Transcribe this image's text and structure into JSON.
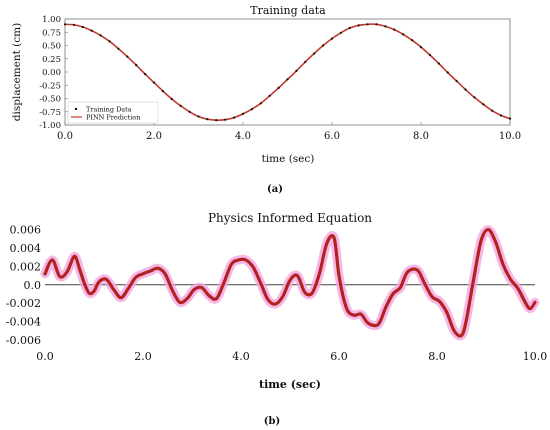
{
  "chart_data": [
    {
      "type": "line",
      "title": "Training data",
      "xlabel": "time (sec)",
      "ylabel": "displacement (cm)",
      "xlim": [
        0,
        10
      ],
      "ylim": [
        -1.0,
        1.0
      ],
      "x_ticks": [
        "0.0",
        "2.0",
        "4.0",
        "6.0",
        "8.0",
        "10.0"
      ],
      "y_ticks": [
        "1.00",
        "0.75",
        "0.50",
        "0.25",
        "0.00",
        "-0.25",
        "-0.50",
        "-0.75",
        "-1.00"
      ],
      "legend_position": "bottom-left",
      "series": [
        {
          "name": "Training Data",
          "style": "points",
          "color": "#111111",
          "x": [
            0.0,
            0.2,
            0.4,
            0.6,
            0.8,
            1.0,
            1.2,
            1.4,
            1.6,
            1.8,
            2.0,
            2.2,
            2.4,
            2.6,
            2.8,
            3.0,
            3.2,
            3.4,
            3.6,
            3.8,
            4.0,
            4.2,
            4.4,
            4.6,
            4.8,
            5.0,
            5.2,
            5.4,
            5.6,
            5.8,
            6.0,
            6.2,
            6.4,
            6.6,
            6.8,
            7.0,
            7.2,
            7.4,
            7.6,
            7.8,
            8.0,
            8.2,
            8.4,
            8.6,
            8.8,
            9.0,
            9.2,
            9.4,
            9.6,
            9.8,
            10.0
          ],
          "y": [
            0.9,
            0.89,
            0.85,
            0.78,
            0.69,
            0.58,
            0.44,
            0.29,
            0.13,
            -0.04,
            -0.2,
            -0.36,
            -0.51,
            -0.64,
            -0.75,
            -0.84,
            -0.89,
            -0.91,
            -0.9,
            -0.86,
            -0.79,
            -0.7,
            -0.59,
            -0.45,
            -0.3,
            -0.14,
            0.02,
            0.19,
            0.35,
            0.5,
            0.63,
            0.74,
            0.83,
            0.88,
            0.9,
            0.9,
            0.86,
            0.8,
            0.71,
            0.6,
            0.47,
            0.32,
            0.16,
            -0.01,
            -0.17,
            -0.33,
            -0.48,
            -0.61,
            -0.73,
            -0.82,
            -0.88
          ]
        },
        {
          "name": "PINN Prediction",
          "style": "line",
          "color": "#c0392b",
          "x": [
            0.0,
            0.2,
            0.4,
            0.6,
            0.8,
            1.0,
            1.2,
            1.4,
            1.6,
            1.8,
            2.0,
            2.2,
            2.4,
            2.6,
            2.8,
            3.0,
            3.2,
            3.4,
            3.6,
            3.8,
            4.0,
            4.2,
            4.4,
            4.6,
            4.8,
            5.0,
            5.2,
            5.4,
            5.6,
            5.8,
            6.0,
            6.2,
            6.4,
            6.6,
            6.8,
            7.0,
            7.2,
            7.4,
            7.6,
            7.8,
            8.0,
            8.2,
            8.4,
            8.6,
            8.8,
            9.0,
            9.2,
            9.4,
            9.6,
            9.8,
            10.0
          ],
          "y": [
            0.9,
            0.89,
            0.85,
            0.78,
            0.69,
            0.58,
            0.44,
            0.29,
            0.13,
            -0.04,
            -0.2,
            -0.36,
            -0.51,
            -0.64,
            -0.75,
            -0.84,
            -0.89,
            -0.91,
            -0.9,
            -0.86,
            -0.79,
            -0.7,
            -0.59,
            -0.45,
            -0.3,
            -0.14,
            0.02,
            0.19,
            0.35,
            0.5,
            0.63,
            0.74,
            0.83,
            0.88,
            0.9,
            0.9,
            0.86,
            0.8,
            0.71,
            0.6,
            0.47,
            0.32,
            0.16,
            -0.01,
            -0.17,
            -0.33,
            -0.48,
            -0.61,
            -0.73,
            -0.82,
            -0.88
          ]
        }
      ],
      "panel_label": "(a)"
    },
    {
      "type": "line",
      "title": "Physics Informed Equation",
      "xlabel": "time (sec)",
      "ylabel": "",
      "xlim": [
        0,
        10
      ],
      "ylim": [
        -0.006,
        0.0065
      ],
      "x_ticks": [
        "0.0",
        "2.0",
        "4.0",
        "6.0",
        "8.0",
        "10.0"
      ],
      "y_ticks": [
        "0.006",
        "0.004",
        "0.002",
        "0.0",
        "-0.002",
        "-0.004",
        "-0.006"
      ],
      "zero_line": true,
      "series": [
        {
          "color": "#b22222",
          "halo_color": "#f2a6e0",
          "x": [
            0.0,
            0.15,
            0.3,
            0.45,
            0.6,
            0.7,
            0.8,
            0.9,
            1.0,
            1.1,
            1.25,
            1.4,
            1.55,
            1.7,
            1.85,
            2.0,
            2.15,
            2.3,
            2.45,
            2.6,
            2.75,
            2.9,
            3.05,
            3.2,
            3.35,
            3.5,
            3.65,
            3.8,
            3.95,
            4.1,
            4.25,
            4.4,
            4.55,
            4.7,
            4.85,
            5.0,
            5.15,
            5.3,
            5.45,
            5.6,
            5.75,
            5.9,
            6.0,
            6.15,
            6.3,
            6.45,
            6.6,
            6.8,
            6.95,
            7.1,
            7.25,
            7.4,
            7.6,
            7.75,
            7.9,
            8.05,
            8.2,
            8.35,
            8.5,
            8.6,
            8.75,
            8.9,
            9.05,
            9.2,
            9.35,
            9.5,
            9.65,
            9.8,
            9.9,
            10.0
          ],
          "y": [
            0.0012,
            0.0027,
            0.0009,
            0.0014,
            0.0031,
            0.0018,
            0.0002,
            -0.0009,
            -0.0007,
            0.0003,
            0.0006,
            -0.0005,
            -0.0014,
            -0.0004,
            0.0008,
            0.0012,
            0.0015,
            0.0018,
            0.0012,
            -0.0006,
            -0.0019,
            -0.0015,
            -0.0005,
            -0.0003,
            -0.0012,
            -0.0015,
            0.0002,
            0.0022,
            0.0027,
            0.0027,
            0.0019,
            0.0002,
            -0.0016,
            -0.0021,
            -0.0013,
            0.0005,
            0.001,
            -0.0008,
            -0.0009,
            0.0012,
            0.0045,
            0.0051,
            0.001,
            -0.0025,
            -0.0033,
            -0.0032,
            -0.0042,
            -0.0043,
            -0.0025,
            -0.001,
            -0.0003,
            0.0014,
            0.0016,
            0.0001,
            -0.0013,
            -0.0018,
            -0.003,
            -0.005,
            -0.0055,
            -0.0038,
            0.0007,
            0.0048,
            0.006,
            0.0046,
            0.0022,
            0.0006,
            -0.0004,
            -0.0019,
            -0.0026,
            -0.0019
          ]
        }
      ],
      "panel_label": "(b)"
    }
  ]
}
